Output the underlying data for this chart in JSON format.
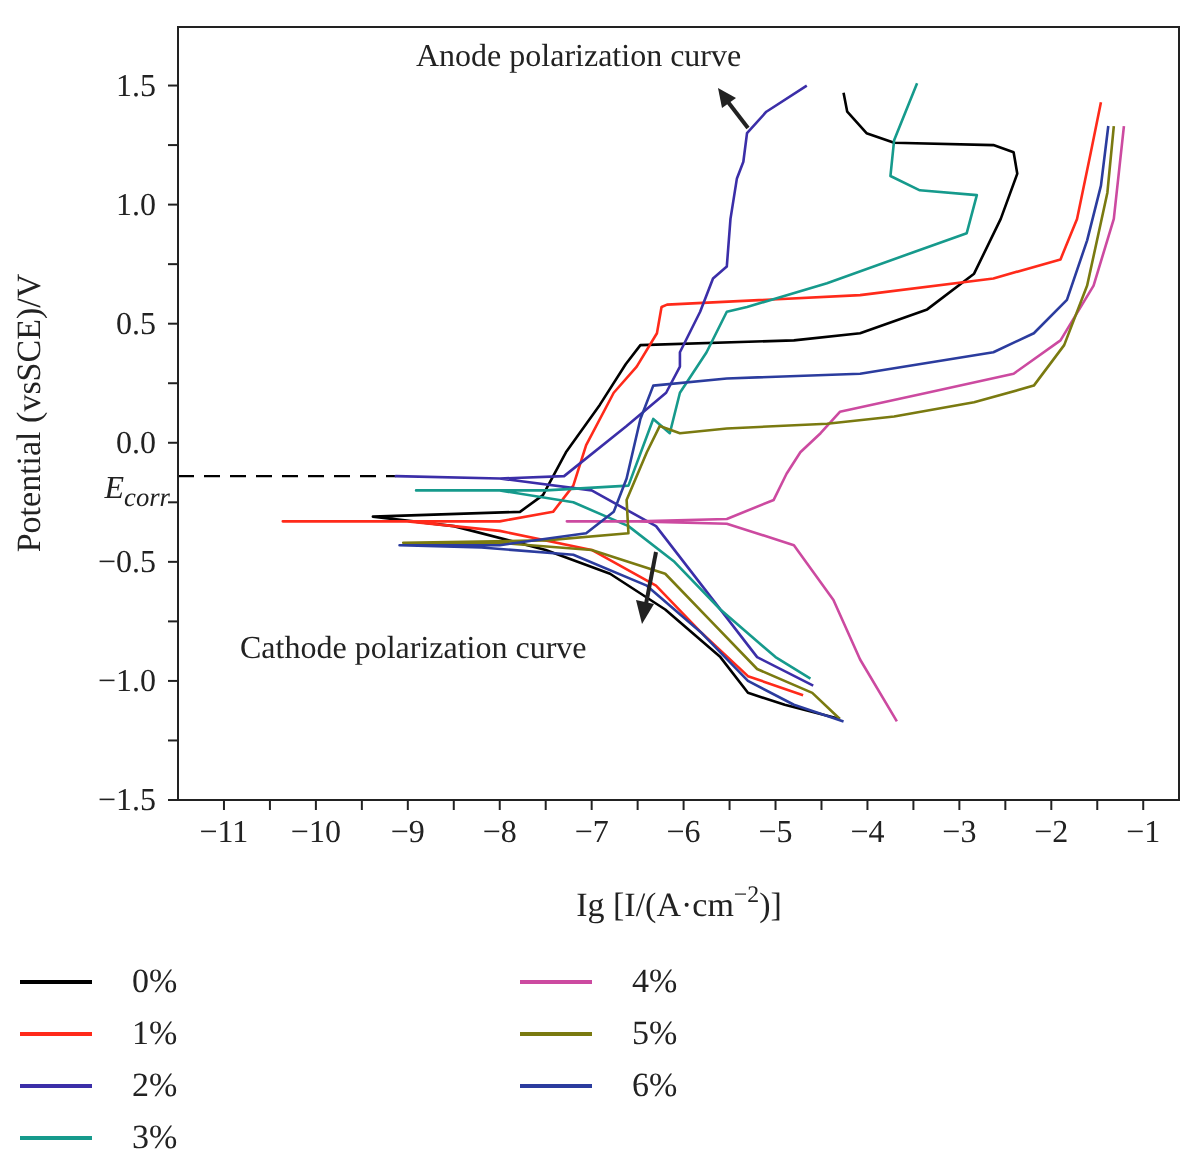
{
  "chart_data": {
    "type": "line",
    "xlabel": "Ig [I/(A·cm$^{−2}$)]",
    "ylabel": "Potential (vsSCE)/V",
    "xlim": [
      -11.5,
      -0.6
    ],
    "ylim": [
      -1.5,
      1.75
    ],
    "xticks": [
      {
        "value": -11,
        "label": "−11"
      },
      {
        "value": -10.5,
        "label": null
      },
      {
        "value": -10,
        "label": "−10"
      },
      {
        "value": -9.5,
        "label": null
      },
      {
        "value": -9,
        "label": "−9"
      },
      {
        "value": -8.5,
        "label": null
      },
      {
        "value": -8,
        "label": "−8"
      },
      {
        "value": -7.5,
        "label": null
      },
      {
        "value": -7,
        "label": "−7"
      },
      {
        "value": -6.5,
        "label": null
      },
      {
        "value": -6,
        "label": "−6"
      },
      {
        "value": -5.5,
        "label": null
      },
      {
        "value": -5,
        "label": "−5"
      },
      {
        "value": -4.5,
        "label": null
      },
      {
        "value": -4,
        "label": "−4"
      },
      {
        "value": -3.5,
        "label": null
      },
      {
        "value": -3,
        "label": "−3"
      },
      {
        "value": -2.5,
        "label": null
      },
      {
        "value": -2,
        "label": "−2"
      },
      {
        "value": -1.5,
        "label": null
      },
      {
        "value": -1,
        "label": "−1"
      }
    ],
    "yticks": [
      {
        "value": -1.5,
        "label": "−1.5"
      },
      {
        "value": -1.25,
        "label": null
      },
      {
        "value": -1,
        "label": "−1.0"
      },
      {
        "value": -0.75,
        "label": null
      },
      {
        "value": -0.5,
        "label": "−0.5"
      },
      {
        "value": -0.25,
        "label": null
      },
      {
        "value": 0,
        "label": "0.0"
      },
      {
        "value": 0.25,
        "label": null
      },
      {
        "value": 0.5,
        "label": "0.5"
      },
      {
        "value": 0.75,
        "label": null
      },
      {
        "value": 1,
        "label": "1.0"
      },
      {
        "value": 1.25,
        "label": null
      },
      {
        "value": 1.5,
        "label": "1.5"
      }
    ],
    "legend": "bottom",
    "marker": "none",
    "line_style": "solid",
    "ref_lines": [
      {
        "axis": "y",
        "value": -0.14,
        "label": "E$_{corr}$",
        "line_style": "dashed",
        "color": "#000000"
      }
    ],
    "annotations": [
      "Anode polarization curve",
      "Cathode polarization curve"
    ],
    "series": [
      {
        "name": "0%",
        "color": "#000000",
        "x": [
          -4.3,
          -4.9,
          -5.3,
          -5.6,
          -6.2,
          -6.8,
          -7.5,
          -8.5,
          -9.38,
          -7.78,
          -7.53,
          -7.28,
          -6.91,
          -6.63,
          -6.47,
          -4.8,
          -4.08,
          -3.35,
          -2.84,
          -2.55,
          -2.37,
          -2.41,
          -2.63,
          -3.71,
          -4.01,
          -4.22,
          -4.26
        ],
        "values": [
          -1.16,
          -1.1,
          -1.05,
          -0.9,
          -0.7,
          -0.55,
          -0.45,
          -0.35,
          -0.31,
          -0.29,
          -0.22,
          -0.04,
          0.16,
          0.33,
          0.41,
          0.43,
          0.46,
          0.56,
          0.71,
          0.94,
          1.13,
          1.22,
          1.25,
          1.26,
          1.3,
          1.39,
          1.47
        ]
      },
      {
        "name": "1%",
        "color": "#ff2a1a",
        "x": [
          -4.7,
          -5.3,
          -5.8,
          -6.3,
          -7,
          -8,
          -9,
          -10.36,
          -8,
          -7.42,
          -7.2,
          -7.06,
          -6.76,
          -6.51,
          -6.29,
          -6.24,
          -6.18,
          -4.08,
          -2.63,
          -1.9,
          -1.72,
          -1.57,
          -1.46
        ],
        "values": [
          -1.06,
          -0.98,
          -0.8,
          -0.6,
          -0.45,
          -0.37,
          -0.33,
          -0.33,
          -0.33,
          -0.29,
          -0.18,
          -0.01,
          0.21,
          0.32,
          0.46,
          0.57,
          0.58,
          0.62,
          0.69,
          0.77,
          0.94,
          1.22,
          1.43
        ]
      },
      {
        "name": "2%",
        "color": "#3b2ea8",
        "x": [
          -4.59,
          -5.2,
          -5.8,
          -6.3,
          -7,
          -8,
          -9.13,
          -8,
          -7.3,
          -6.62,
          -6.19,
          -6.04,
          -6.04,
          -5.82,
          -5.68,
          -5.53,
          -5.49,
          -5.42,
          -5.35,
          -5.31,
          -5.1,
          -4.66
        ],
        "values": [
          -1.02,
          -0.9,
          -0.6,
          -0.35,
          -0.2,
          -0.15,
          -0.14,
          -0.15,
          -0.14,
          0.07,
          0.21,
          0.32,
          0.38,
          0.55,
          0.69,
          0.74,
          0.94,
          1.11,
          1.18,
          1.3,
          1.39,
          1.5
        ]
      },
      {
        "name": "3%",
        "color": "#169a8c",
        "x": [
          -4.62,
          -5,
          -5.6,
          -6.1,
          -6.6,
          -7.2,
          -8,
          -8.91,
          -7.5,
          -6.6,
          -6.33,
          -6.15,
          -6.04,
          -5.75,
          -5.53,
          -5.31,
          -4.44,
          -3.5,
          -2.92,
          -2.81,
          -3.43,
          -3.75,
          -3.71,
          -3.46
        ],
        "values": [
          -0.99,
          -0.9,
          -0.7,
          -0.5,
          -0.35,
          -0.25,
          -0.2,
          -0.2,
          -0.2,
          -0.18,
          0.1,
          0.04,
          0.21,
          0.38,
          0.55,
          0.57,
          0.67,
          0.8,
          0.88,
          1.04,
          1.06,
          1.12,
          1.27,
          1.51
        ]
      },
      {
        "name": "4%",
        "color": "#cc4aa0",
        "x": [
          -3.68,
          -4.08,
          -4.37,
          -4.8,
          -5.53,
          -6.5,
          -7.27,
          -6.5,
          -5.53,
          -5.02,
          -4.88,
          -4.73,
          -4.51,
          -4.3,
          -3.35,
          -2.41,
          -1.9,
          -1.54,
          -1.32,
          -1.21
        ],
        "values": [
          -1.17,
          -0.91,
          -0.66,
          -0.43,
          -0.34,
          -0.33,
          -0.33,
          -0.33,
          -0.32,
          -0.24,
          -0.13,
          -0.04,
          0.04,
          0.13,
          0.21,
          0.29,
          0.43,
          0.66,
          0.94,
          1.33
        ]
      },
      {
        "name": "5%",
        "color": "#7a7a10",
        "x": [
          -4.3,
          -4.6,
          -5.2,
          -5.7,
          -6.2,
          -7,
          -8,
          -9.05,
          -7.5,
          -6.6,
          -6.62,
          -6.4,
          -6.26,
          -6.04,
          -5.53,
          -4.44,
          -3.71,
          -2.84,
          -2.19,
          -1.86,
          -1.61,
          -1.39,
          -1.32
        ],
        "values": [
          -1.16,
          -1.05,
          -0.95,
          -0.75,
          -0.55,
          -0.45,
          -0.42,
          -0.42,
          -0.41,
          -0.38,
          -0.24,
          -0.04,
          0.07,
          0.04,
          0.06,
          0.08,
          0.11,
          0.17,
          0.24,
          0.41,
          0.66,
          1.05,
          1.33
        ]
      },
      {
        "name": "6%",
        "color": "#2b3c9e",
        "x": [
          -4.26,
          -4.8,
          -5.3,
          -5.8,
          -6.4,
          -7.2,
          -8.2,
          -9.09,
          -8,
          -7.06,
          -6.76,
          -6.62,
          -6.47,
          -6.33,
          -5.53,
          -4.08,
          -2.63,
          -2.19,
          -1.83,
          -1.61,
          -1.46,
          -1.38
        ],
        "values": [
          -1.17,
          -1.1,
          -1,
          -0.8,
          -0.6,
          -0.47,
          -0.44,
          -0.43,
          -0.43,
          -0.38,
          -0.29,
          -0.15,
          0.1,
          0.24,
          0.27,
          0.29,
          0.38,
          0.46,
          0.6,
          0.85,
          1.08,
          1.33
        ]
      }
    ]
  }
}
